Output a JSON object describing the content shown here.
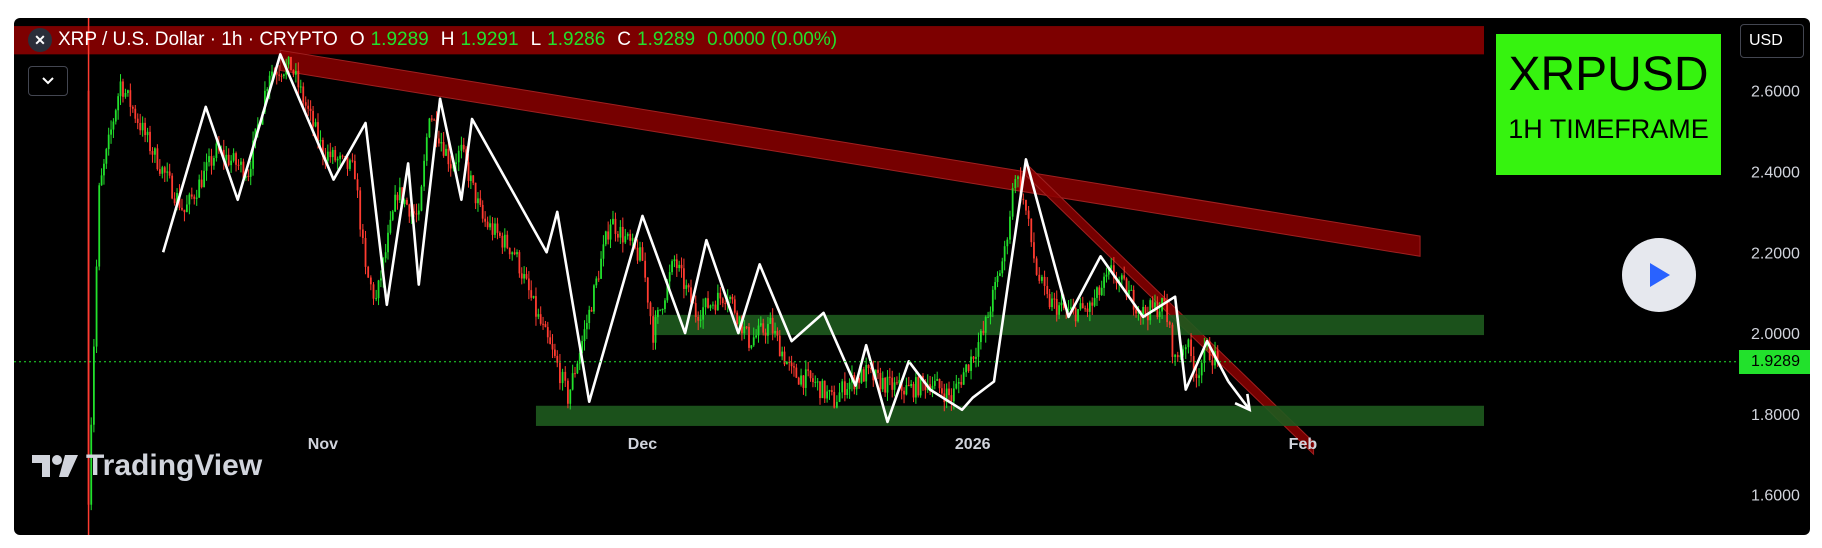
{
  "header": {
    "symbol": "XRP / U.S. Dollar · 1h · CRYPTO",
    "open_label": "O",
    "open": "1.9289",
    "high_label": "H",
    "high": "1.9291",
    "low_label": "L",
    "low": "1.9286",
    "close_label": "C",
    "close": "1.9289",
    "change": "0.0000 (0.00%)"
  },
  "currency_button": "USD",
  "badge": {
    "line1": "XRPUSD",
    "line2": "1H TIMEFRAME"
  },
  "logo_text": "TradingView",
  "icons": {
    "close": "close-icon",
    "collapse": "chevron-down-icon",
    "play": "play-icon",
    "logo": "tradingview-logo-icon"
  },
  "colors": {
    "background": "#000000",
    "up": "#22e12c",
    "down": "#ff3b30",
    "resistance": "#8b0000",
    "support": "#1e5a1e",
    "badge": "#36f30f",
    "price_line": "#22e12c",
    "zigzag": "#ffffff"
  },
  "chart_data": {
    "type": "candlestick",
    "title": "XRP / U.S. Dollar · 1h · CRYPTO",
    "x_ticks": [
      "Nov",
      "Dec",
      "2026",
      "Feb"
    ],
    "x_tick_dates": [
      "2025-11-01",
      "2025-12-01",
      "2026-01-01",
      "2026-02-01"
    ],
    "x_range": [
      "2025-10-03",
      "2026-02-18"
    ],
    "y_ticks": [
      1.6,
      1.8,
      2.0,
      2.2,
      2.4,
      2.6
    ],
    "y_tick_labels": [
      "1.6000",
      "1.8000",
      "2.0000",
      "2.2000",
      "2.4000",
      "2.6000"
    ],
    "ylim": [
      1.5,
      2.78
    ],
    "last_price": 1.9289,
    "last_price_label": "1.9289",
    "price_path": [
      [
        "2025-10-10",
        2.6
      ],
      [
        "2025-10-10",
        1.6
      ],
      [
        "2025-10-11",
        2.35
      ],
      [
        "2025-10-13",
        2.62
      ],
      [
        "2025-10-16",
        2.45
      ],
      [
        "2025-10-19",
        2.3
      ],
      [
        "2025-10-22",
        2.45
      ],
      [
        "2025-10-25",
        2.4
      ],
      [
        "2025-10-27",
        2.65
      ],
      [
        "2025-10-29",
        2.66
      ],
      [
        "2025-11-01",
        2.45
      ],
      [
        "2025-11-04",
        2.4
      ],
      [
        "2025-11-05",
        2.15
      ],
      [
        "2025-11-06",
        2.08
      ],
      [
        "2025-11-08",
        2.35
      ],
      [
        "2025-11-10",
        2.28
      ],
      [
        "2025-11-11",
        2.55
      ],
      [
        "2025-11-13",
        2.42
      ],
      [
        "2025-11-14",
        2.45
      ],
      [
        "2025-11-16",
        2.28
      ],
      [
        "2025-11-19",
        2.2
      ],
      [
        "2025-11-21",
        2.05
      ],
      [
        "2025-11-23",
        1.92
      ],
      [
        "2025-11-24",
        1.84
      ],
      [
        "2025-11-26",
        2.05
      ],
      [
        "2025-11-28",
        2.28
      ],
      [
        "2025-12-01",
        2.18
      ],
      [
        "2025-12-02",
        2.0
      ],
      [
        "2025-12-04",
        2.18
      ],
      [
        "2025-12-06",
        2.05
      ],
      [
        "2025-12-09",
        2.1
      ],
      [
        "2025-12-11",
        1.98
      ],
      [
        "2025-12-13",
        2.02
      ],
      [
        "2025-12-15",
        1.9
      ],
      [
        "2025-12-17",
        1.88
      ],
      [
        "2025-12-19",
        1.83
      ],
      [
        "2025-12-20",
        1.87
      ],
      [
        "2025-12-22",
        1.9
      ],
      [
        "2025-12-24",
        1.87
      ],
      [
        "2025-12-26",
        1.86
      ],
      [
        "2025-12-28",
        1.88
      ],
      [
        "2025-12-30",
        1.84
      ],
      [
        "2026-01-02",
        2.0
      ],
      [
        "2026-01-04",
        2.2
      ],
      [
        "2026-01-05",
        2.4
      ],
      [
        "2026-01-06",
        2.3
      ],
      [
        "2026-01-07",
        2.15
      ],
      [
        "2026-01-08",
        2.08
      ],
      [
        "2026-01-10",
        2.05
      ],
      [
        "2026-01-12",
        2.06
      ],
      [
        "2026-01-14",
        2.15
      ],
      [
        "2026-01-15",
        2.12
      ],
      [
        "2026-01-17",
        2.05
      ],
      [
        "2026-01-19",
        2.07
      ],
      [
        "2026-01-20",
        1.93
      ],
      [
        "2026-01-21",
        1.98
      ],
      [
        "2026-01-22",
        1.9
      ],
      [
        "2026-01-23",
        1.96
      ],
      [
        "2026-01-24",
        1.9289
      ]
    ],
    "annotations": {
      "zigzag": [
        [
          "2025-10-17",
          2.2
        ],
        [
          "2025-10-21",
          2.56
        ],
        [
          "2025-10-24",
          2.33
        ],
        [
          "2025-10-28",
          2.69
        ],
        [
          "2025-11-02",
          2.38
        ],
        [
          "2025-11-05",
          2.52
        ],
        [
          "2025-11-07",
          2.07
        ],
        [
          "2025-11-09",
          2.42
        ],
        [
          "2025-11-10",
          2.12
        ],
        [
          "2025-11-12",
          2.58
        ],
        [
          "2025-11-14",
          2.33
        ],
        [
          "2025-11-15",
          2.53
        ],
        [
          "2025-11-22",
          2.2
        ],
        [
          "2025-11-23",
          2.3
        ],
        [
          "2025-11-26",
          1.83
        ],
        [
          "2025-12-01",
          2.29
        ],
        [
          "2025-12-05",
          2.0
        ],
        [
          "2025-12-07",
          2.23
        ],
        [
          "2025-12-10",
          2.0
        ],
        [
          "2025-12-12",
          2.17
        ],
        [
          "2025-12-15",
          1.98
        ],
        [
          "2025-12-18",
          2.05
        ],
        [
          "2025-12-21",
          1.87
        ],
        [
          "2025-12-22",
          1.97
        ],
        [
          "2025-12-24",
          1.78
        ],
        [
          "2025-12-26",
          1.93
        ],
        [
          "2025-12-28",
          1.86
        ],
        [
          "2025-12-31",
          1.81
        ],
        [
          "2026-01-01",
          1.84
        ],
        [
          "2026-01-03",
          1.88
        ],
        [
          "2026-01-06",
          2.43
        ],
        [
          "2026-01-10",
          2.04
        ],
        [
          "2026-01-13",
          2.19
        ],
        [
          "2026-01-17",
          2.04
        ],
        [
          "2026-01-20",
          2.09
        ],
        [
          "2026-01-21",
          1.86
        ],
        [
          "2026-01-23",
          1.98
        ],
        [
          "2026-01-25",
          1.88
        ]
      ],
      "arrow": {
        "from": [
          "2026-01-25",
          1.88
        ],
        "to": [
          "2026-01-27",
          1.81
        ]
      },
      "resistance_zones": [
        {
          "kind": "horizontal",
          "from": "2025-10-03",
          "to": "2026-02-18",
          "top": 2.76,
          "bottom": 2.69
        },
        {
          "kind": "trendline",
          "from": [
            "2025-10-28",
            2.7
          ],
          "to": [
            "2026-02-12",
            2.24
          ],
          "thickness": 0.05
        },
        {
          "kind": "trendline",
          "from": [
            "2026-01-06",
            2.42
          ],
          "to": [
            "2026-02-02",
            1.73
          ],
          "thickness": 0.03
        }
      ],
      "support_zones": [
        {
          "from": "2025-12-02",
          "to": "2026-02-18",
          "top": 2.045,
          "bottom": 1.995
        },
        {
          "from": "2025-11-21",
          "to": "2026-02-18",
          "top": 1.82,
          "bottom": 1.77
        }
      ]
    }
  }
}
